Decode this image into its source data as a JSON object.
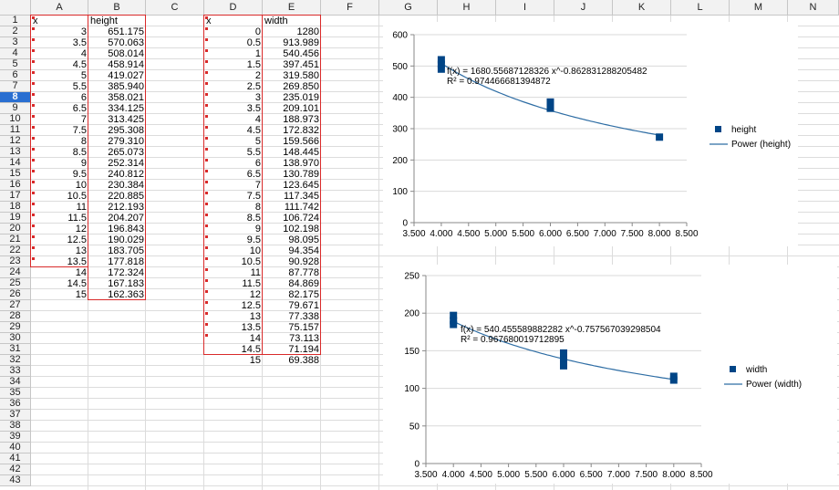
{
  "columns": [
    "A",
    "B",
    "C",
    "D",
    "E",
    "F",
    "G",
    "H",
    "I",
    "J",
    "K",
    "L",
    "M",
    "N"
  ],
  "rows": [
    "1",
    "2",
    "3",
    "4",
    "5",
    "6",
    "7",
    "8",
    "9",
    "10",
    "11",
    "12",
    "13",
    "14",
    "15",
    "16",
    "17",
    "18",
    "19",
    "20",
    "21",
    "22",
    "23",
    "24",
    "25",
    "26",
    "27",
    "28",
    "29",
    "30",
    "31",
    "32",
    "33",
    "34",
    "35",
    "36",
    "37",
    "38",
    "39",
    "40",
    "41",
    "42",
    "43"
  ],
  "selected_row": "8",
  "table_height": {
    "headers": [
      "x",
      "height"
    ],
    "x": [
      "3",
      "3.5",
      "4",
      "4.5",
      "5",
      "5.5",
      "6",
      "6.5",
      "7",
      "7.5",
      "8",
      "8.5",
      "9",
      "9.5",
      "10",
      "10.5",
      "11",
      "11.5",
      "12",
      "12.5",
      "13",
      "13.5",
      "14",
      "14.5",
      "15"
    ],
    "values": [
      "651.175",
      "570.063",
      "508.014",
      "458.914",
      "419.027",
      "385.940",
      "358.021",
      "334.125",
      "313.425",
      "295.308",
      "279.310",
      "265.073",
      "252.314",
      "240.812",
      "230.384",
      "220.885",
      "212.193",
      "204.207",
      "196.843",
      "190.029",
      "183.705",
      "177.818",
      "172.324",
      "167.183",
      "162.363"
    ]
  },
  "table_width": {
    "headers": [
      "x",
      "width"
    ],
    "x": [
      "0",
      "0.5",
      "1",
      "1.5",
      "2",
      "2.5",
      "3",
      "3.5",
      "4",
      "4.5",
      "5",
      "5.5",
      "6",
      "6.5",
      "7",
      "7.5",
      "8",
      "8.5",
      "9",
      "9.5",
      "10",
      "10.5",
      "11",
      "11.5",
      "12",
      "12.5",
      "13",
      "13.5",
      "14",
      "14.5",
      "15"
    ],
    "values": [
      "1280",
      "913.989",
      "540.456",
      "397.451",
      "319.580",
      "269.850",
      "235.019",
      "209.101",
      "188.973",
      "172.832",
      "159.566",
      "148.445",
      "138.970",
      "130.789",
      "123.645",
      "117.345",
      "111.742",
      "106.724",
      "102.198",
      "98.095",
      "94.354",
      "90.928",
      "87.778",
      "84.869",
      "82.175",
      "79.671",
      "77.338",
      "75.157",
      "73.113",
      "71.194",
      "69.388"
    ]
  },
  "chart_data": [
    {
      "type": "scatter",
      "title": "",
      "xlabel": "",
      "ylabel": "",
      "xlim": [
        3.5,
        8.5
      ],
      "ylim": [
        0,
        600
      ],
      "xticks": [
        "3.500",
        "4.000",
        "4.500",
        "5.000",
        "5.500",
        "6.000",
        "6.500",
        "7.000",
        "7.500",
        "8.000",
        "8.500"
      ],
      "yticks": [
        "0",
        "100",
        "200",
        "300",
        "400",
        "500",
        "600"
      ],
      "series": [
        {
          "name": "height",
          "x": [
            4,
            4,
            4,
            6,
            6,
            8
          ],
          "y": [
            520,
            505,
            490,
            385,
            365,
            273
          ]
        }
      ],
      "trendline": {
        "name": "Power (height)",
        "a": 1680.55687128326,
        "b": -0.862831288205482
      },
      "equation": "f(x) = 1680.55687128326 x^-0.862831288205482",
      "r2": "R² = 0.974466681394872",
      "legend": "right",
      "grid": "horizontal"
    },
    {
      "type": "scatter",
      "title": "",
      "xlabel": "",
      "ylabel": "",
      "xlim": [
        3.5,
        8.5
      ],
      "ylim": [
        0,
        250
      ],
      "xticks": [
        "3.500",
        "4.000",
        "4.500",
        "5.000",
        "5.500",
        "6.000",
        "6.500",
        "7.000",
        "7.500",
        "8.000",
        "8.500"
      ],
      "yticks": [
        "0",
        "50",
        "100",
        "150",
        "200",
        "250"
      ],
      "series": [
        {
          "name": "width",
          "x": [
            4,
            4,
            4,
            6,
            6,
            6,
            8,
            8
          ],
          "y": [
            197,
            190,
            185,
            147,
            138,
            130,
            116,
            111
          ]
        }
      ],
      "trendline": {
        "name": "Power (width)",
        "a": 540.455589882282,
        "b": -0.757567039298504
      },
      "equation": "f(x) = 540.455589882282 x^-0.757567039298504",
      "r2": "R² = 0.967680019712895",
      "legend": "right",
      "grid": "horizontal"
    }
  ],
  "colors": {
    "marker": "#004586",
    "trend": "#2e6da4",
    "grid": "#d9d9d9",
    "border": "#d92a2a",
    "selected": "#2a6fd1"
  }
}
